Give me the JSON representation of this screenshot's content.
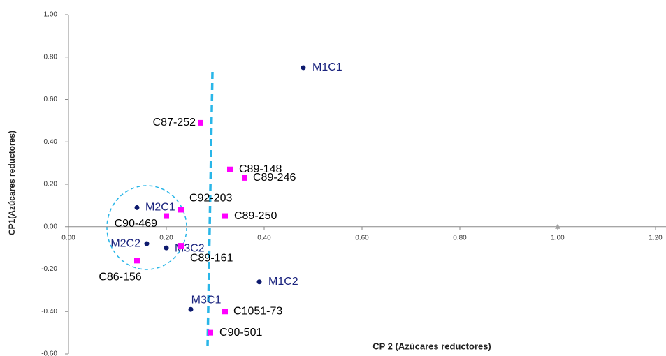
{
  "chart_data": {
    "type": "scatter",
    "xlabel": "CP 2 (Azúcares reductores)",
    "ylabel": "CP1(Azúcares reductores)",
    "xlim": [
      0,
      1.2
    ],
    "ylim": [
      -0.6,
      1.0
    ],
    "xticks": [
      {
        "value": 0,
        "label": "0.00"
      },
      {
        "value": 0.2,
        "label": "0.20"
      },
      {
        "value": 0.4,
        "label": "0.40"
      },
      {
        "value": 0.6,
        "label": "0.60"
      },
      {
        "value": 0.8,
        "label": "0.80"
      },
      {
        "value": 1.0,
        "label": "1.00"
      },
      {
        "value": 1.2,
        "label": "1.20"
      }
    ],
    "yticks": [
      {
        "value": -0.6,
        "label": "-0.60"
      },
      {
        "value": -0.4,
        "label": "-0.40"
      },
      {
        "value": -0.2,
        "label": "-0.20"
      },
      {
        "value": 0,
        "label": "0.00"
      },
      {
        "value": 0.2,
        "label": "0.20"
      },
      {
        "value": 0.4,
        "label": "0.40"
      },
      {
        "value": 0.6,
        "label": "0.60"
      },
      {
        "value": 0.8,
        "label": "0.80"
      },
      {
        "value": 1.0,
        "label": "1.00"
      }
    ],
    "series": [
      {
        "color": "#0d1a6e",
        "marker": "circle",
        "label_color": "#1a237e",
        "labels": [
          "M1C1",
          "M2C1",
          "M2C2",
          "M3C2",
          "M1C2",
          "M3C1"
        ],
        "x": [
          0.48,
          0.14,
          0.16,
          0.2,
          0.39,
          0.25
        ],
        "values": [
          0.75,
          0.09,
          -0.08,
          -0.1,
          -0.26,
          -0.39
        ]
      },
      {
        "color": "#ff00ff",
        "marker": "square",
        "label_color": "#000000",
        "labels": [
          "C87-252",
          "C89-148",
          "C89-246",
          "C92-203",
          "C90-469",
          "C89-250",
          "C89-161",
          "C86-156",
          "C1051-73",
          "C90-501"
        ],
        "x": [
          0.27,
          0.33,
          0.36,
          0.23,
          0.2,
          0.32,
          0.23,
          0.14,
          0.32,
          0.29
        ],
        "values": [
          0.49,
          0.27,
          0.23,
          0.08,
          0.05,
          0.05,
          -0.09,
          -0.16,
          -0.4,
          -0.5
        ]
      },
      {
        "color": "#a0a0a0",
        "marker": "triangle",
        "x": [
          1.0
        ],
        "values": [
          0
        ]
      }
    ]
  }
}
